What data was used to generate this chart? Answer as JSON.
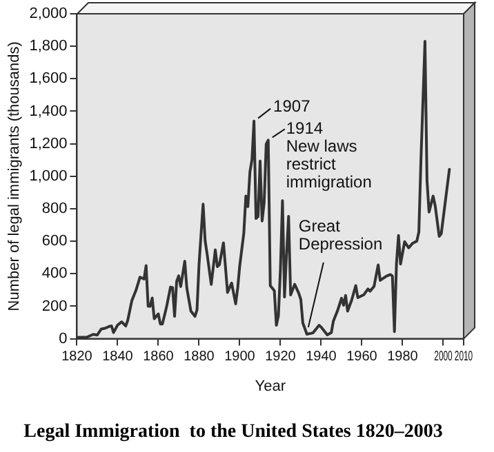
{
  "chart_data": {
    "type": "line",
    "title": "Legal Immigration  to the United States 1820–2003",
    "xlabel": "Year",
    "ylabel": "Number of legal immigrants (thousands)",
    "x": [
      1820,
      1825,
      1828,
      1830,
      1832,
      1834,
      1836,
      1837,
      1838,
      1840,
      1842,
      1844,
      1845,
      1847,
      1849,
      1851,
      1853,
      1854,
      1855,
      1856,
      1857,
      1858,
      1860,
      1861,
      1862,
      1864,
      1866,
      1867,
      1868,
      1869,
      1870,
      1871,
      1873,
      1874,
      1876,
      1878,
      1879,
      1880,
      1882,
      1883,
      1884,
      1886,
      1888,
      1889,
      1890,
      1892,
      1893,
      1894,
      1896,
      1898,
      1899,
      1900,
      1902,
      1903,
      1904,
      1905,
      1906,
      1907,
      1908,
      1909,
      1910,
      1911,
      1912,
      1913,
      1914,
      1915,
      1917,
      1918,
      1919,
      1920,
      1921,
      1922,
      1923,
      1924,
      1925,
      1927,
      1929,
      1930,
      1931,
      1933,
      1936,
      1939,
      1940,
      1943,
      1945,
      1946,
      1948,
      1950,
      1951,
      1952,
      1953,
      1955,
      1957,
      1958,
      1961,
      1963,
      1964,
      1966,
      1968,
      1969,
      1972,
      1974,
      1975,
      1976,
      1977,
      1978,
      1979,
      1981,
      1983,
      1985,
      1987,
      1988,
      1989,
      1991,
      1992,
      1993,
      1995,
      1996,
      1998,
      1999,
      2003
    ],
    "values": [
      8,
      10,
      27,
      23,
      60,
      65,
      76,
      79,
      38,
      84,
      104,
      78,
      114,
      235,
      297,
      379,
      368,
      450,
      200,
      200,
      251,
      123,
      153,
      91,
      91,
      193,
      318,
      315,
      138,
      352,
      387,
      321,
      477,
      313,
      170,
      138,
      177,
      457,
      828,
      603,
      519,
      334,
      547,
      444,
      455,
      590,
      440,
      285,
      343,
      215,
      312,
      449,
      649,
      878,
      813,
      1026,
      1101,
      1340,
      740,
      752,
      1093,
      725,
      838,
      1198,
      1222,
      327,
      295,
      83,
      141,
      430,
      850,
      257,
      523,
      753,
      270,
      335,
      280,
      242,
      97,
      28,
      36,
      83,
      71,
      24,
      38,
      109,
      171,
      249,
      206,
      266,
      170,
      238,
      327,
      253,
      271,
      306,
      292,
      323,
      454,
      359,
      385,
      395,
      386,
      44,
      462,
      635,
      460,
      597,
      560,
      588,
      601,
      657,
      1091,
      1830,
      974,
      780,
      878,
      820,
      630,
      646,
      1043
    ],
    "color": "#333333",
    "xlim": [
      1820,
      2010
    ],
    "xticks": [
      1820,
      1840,
      1860,
      1880,
      1900,
      1920,
      1940,
      1960,
      1980,
      2000,
      2010
    ],
    "ylim": [
      0,
      2000
    ],
    "yticks": [
      0,
      200,
      400,
      600,
      800,
      {
        "value": 1000,
        "label": "1,000"
      },
      {
        "value": 1200,
        "label": "1,200"
      },
      {
        "value": 1400,
        "label": "1,400"
      },
      {
        "value": 1600,
        "label": "1,600"
      },
      {
        "value": 1800,
        "label": "1,800"
      },
      {
        "value": 2000,
        "label": "2,000"
      }
    ],
    "grid": false,
    "legend": false,
    "marker": "none",
    "line_style": "solid",
    "annotations": [
      {
        "text": "1907",
        "x": 1907,
        "y": 1340
      },
      {
        "text": "1914\nNew laws\nrestrict\nimmigration",
        "x": 1914,
        "y": 1222
      },
      {
        "text": "Great\nDepression",
        "x": 1933,
        "y": 28
      }
    ]
  }
}
